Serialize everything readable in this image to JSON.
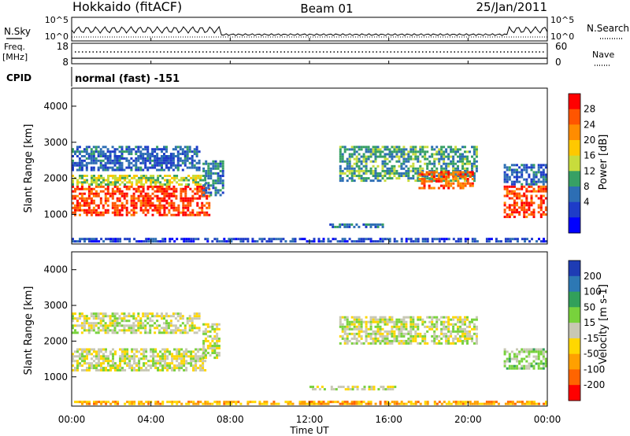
{
  "header": {
    "station": "Hokkaido (fitACF)",
    "beam": "Beam 01",
    "date": "25/Jan/2011"
  },
  "nsky_panel": {
    "left_label": "N.Sky",
    "right_label": "N.Search",
    "left_ticks": [
      "10^5",
      "10^0"
    ],
    "right_ticks": [
      "10^5",
      "10^0"
    ]
  },
  "freq_panel": {
    "left_label": "Freq.",
    "left_unit": "[MHz]",
    "right_label": "Nave",
    "left_ticks": [
      "18",
      "8"
    ],
    "right_ticks": [
      "60",
      "0"
    ]
  },
  "cpid_panel": {
    "label": "CPID",
    "mode": "normal (fast) -151"
  },
  "x_axis": {
    "label": "Time UT",
    "ticks": [
      "00:00",
      "04:00",
      "08:00",
      "12:00",
      "16:00",
      "20:00",
      "00:00"
    ]
  },
  "power_panel": {
    "ylabel": "Slant Range [km]",
    "yticks": [
      "4000",
      "3000",
      "2000",
      "1000"
    ],
    "colorbar_label": "Power [dB]",
    "colorbar_ticks": [
      "28",
      "24",
      "20",
      "16",
      "12",
      "8",
      "4"
    ],
    "colorbar_colors": [
      "#ff0000",
      "#ff5500",
      "#ff8c00",
      "#ffc800",
      "#c8dc3c",
      "#37a064",
      "#2d6eb4",
      "#1e3cc8",
      "#0000ff"
    ]
  },
  "velocity_panel": {
    "ylabel": "Slant Range [km]",
    "yticks": [
      "4000",
      "3000",
      "2000",
      "1000"
    ],
    "colorbar_label": "Velocity [m s-1]",
    "colorbar_ticks": [
      "200",
      "100",
      "50",
      "15",
      "-15",
      "-50",
      "-100",
      "-200"
    ],
    "colorbar_colors": [
      "#1e3cb4",
      "#2d78b4",
      "#32a05a",
      "#78d23c",
      "#c8c8b4",
      "#ffd700",
      "#ffa000",
      "#ff6400",
      "#ff0000"
    ]
  },
  "chart_data": [
    {
      "type": "heatmap",
      "name": "power",
      "x_range_hours": [
        0,
        24
      ],
      "ylim_km": [
        180,
        4500
      ],
      "clim_db": [
        0,
        32
      ],
      "regions": [
        {
          "t0": 0.0,
          "t1": 7.0,
          "r0": 950,
          "r1": 1800,
          "value": 28
        },
        {
          "t0": 0.0,
          "t1": 6.8,
          "r0": 1800,
          "r1": 2100,
          "value": 16
        },
        {
          "t0": 0.0,
          "t1": 6.5,
          "r0": 2200,
          "r1": 2900,
          "value": 8
        },
        {
          "t0": 6.6,
          "t1": 7.7,
          "r0": 1500,
          "r1": 2500,
          "value": 10
        },
        {
          "t0": 13.5,
          "t1": 20.5,
          "r0": 1900,
          "r1": 2900,
          "value": 12
        },
        {
          "t0": 17.5,
          "t1": 20.3,
          "r0": 1700,
          "r1": 2200,
          "value": 26
        },
        {
          "t0": 21.8,
          "t1": 24.0,
          "r0": 900,
          "r1": 1800,
          "value": 28
        },
        {
          "t0": 21.8,
          "t1": 24.0,
          "r0": 1800,
          "r1": 2400,
          "value": 8
        },
        {
          "t0": 13.0,
          "t1": 16.0,
          "r0": 620,
          "r1": 750,
          "value": 10
        },
        {
          "t0": 0.0,
          "t1": 24.0,
          "r0": 220,
          "r1": 350,
          "value": 6
        }
      ]
    },
    {
      "type": "heatmap",
      "name": "velocity",
      "x_range_hours": [
        0,
        24
      ],
      "ylim_km": [
        180,
        4500
      ],
      "clim_ms": [
        -200,
        200
      ],
      "regions": [
        {
          "t0": 0.0,
          "t1": 6.8,
          "r0": 1150,
          "r1": 1800,
          "value": 0
        },
        {
          "t0": 0.0,
          "t1": 6.5,
          "r0": 2200,
          "r1": 2800,
          "value": 0
        },
        {
          "t0": 6.6,
          "t1": 7.5,
          "r0": 1500,
          "r1": 2500,
          "value": 0
        },
        {
          "t0": 13.5,
          "t1": 20.5,
          "r0": 1900,
          "r1": 2700,
          "value": 0
        },
        {
          "t0": 21.8,
          "t1": 24.0,
          "r0": 1200,
          "r1": 1800,
          "value": 30
        },
        {
          "t0": 12.0,
          "t1": 16.5,
          "r0": 620,
          "r1": 750,
          "value": 0
        },
        {
          "t0": 0.0,
          "t1": 24.0,
          "r0": 220,
          "r1": 330,
          "value": -80
        }
      ]
    }
  ]
}
